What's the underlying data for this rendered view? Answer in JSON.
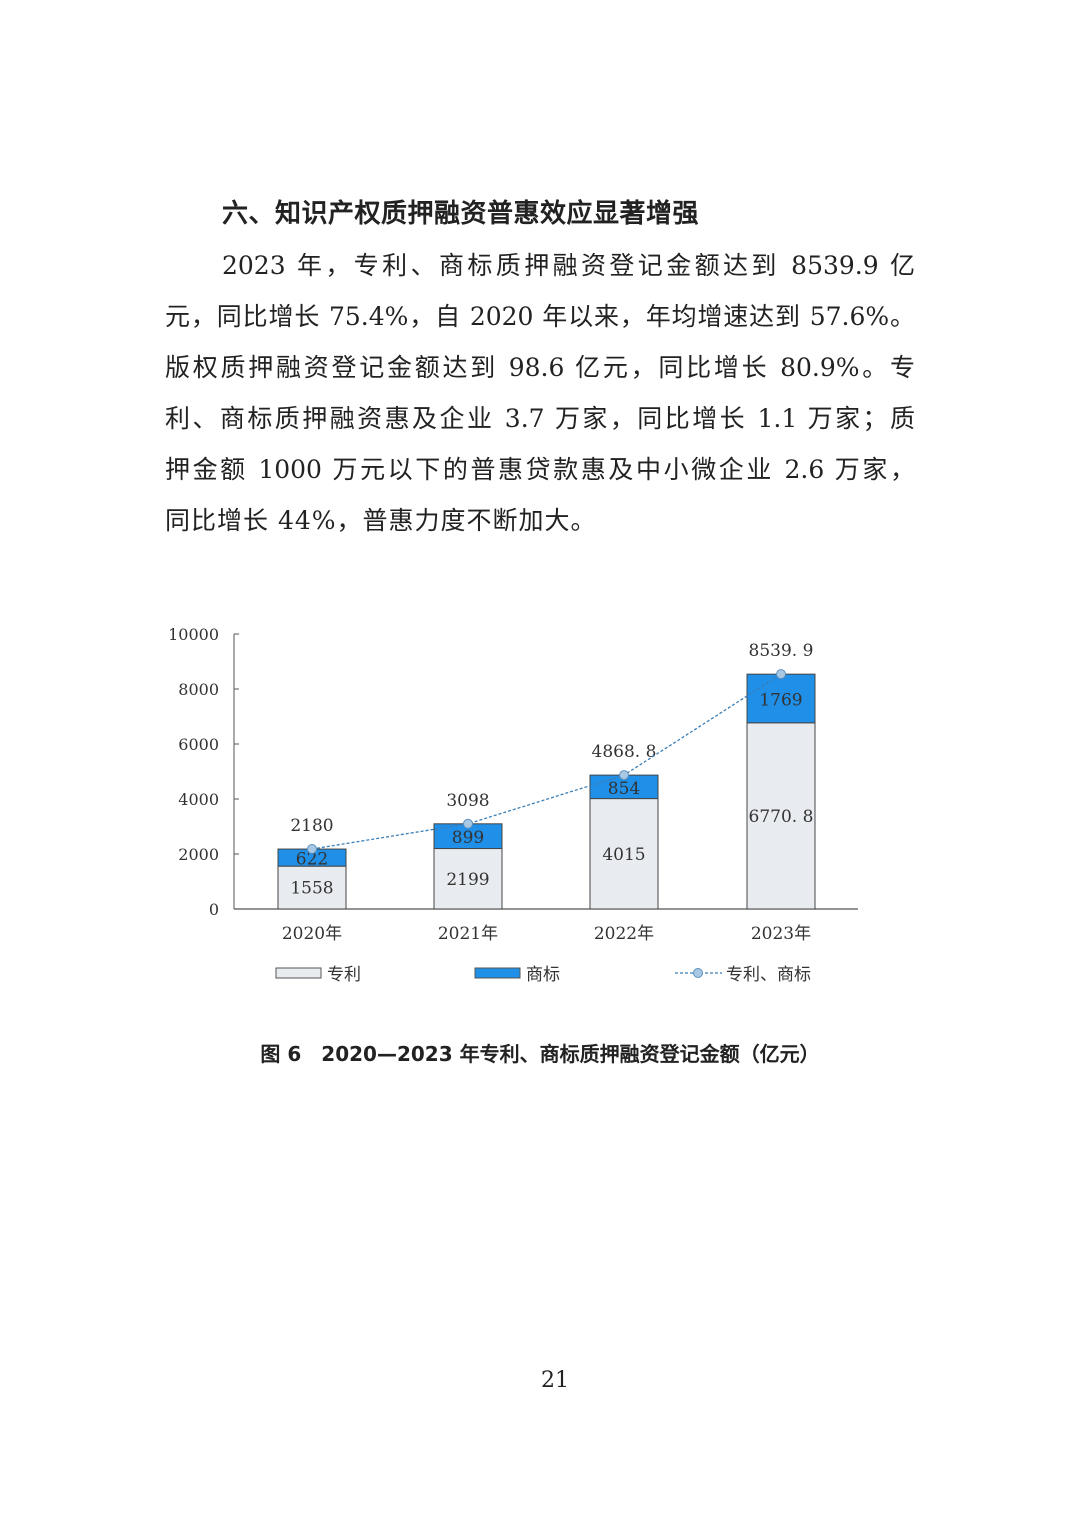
{
  "heading": "六、知识产权质押融资普惠效应显著增强",
  "paragraph_lines": [
    "2023 年，专利、商标质押融资登记金额达到 8539.9 亿",
    "元，同比增长 75.4%，自 2020 年以来，年均增速达到 57.6%。",
    "版权质押融资登记金额达到 98.6 亿元，同比增长 80.9%。专",
    "利、商标质押融资惠及企业 3.7 万家，同比增长 1.1 万家；质",
    "押金额 1000 万元以下的普惠贷款惠及中小微企业 2.6 万家，",
    "同比增长 44%，普惠力度不断加大。"
  ],
  "chart_data": {
    "type": "bar",
    "stacked": true,
    "categories": [
      "2020年",
      "2021年",
      "2022年",
      "2023年"
    ],
    "series": [
      {
        "name": "专利",
        "type": "bar",
        "color": "#e8ebef",
        "values": [
          1558,
          2199,
          4015,
          6770.8
        ],
        "labels": [
          "1558",
          "2199",
          "4015",
          "6770. 8"
        ]
      },
      {
        "name": "商标",
        "type": "bar",
        "color": "#1f8fe8",
        "values": [
          622,
          899,
          854,
          1769
        ],
        "labels": [
          "622",
          "899",
          "854",
          "1769"
        ]
      },
      {
        "name": "专利、商标",
        "type": "line",
        "color": "#3a7fb8",
        "values": [
          2180,
          3098,
          4868.8,
          8539.9
        ],
        "labels": [
          "2180",
          "3098",
          "4868. 8",
          "8539. 9"
        ]
      }
    ],
    "ylim": [
      0,
      10000
    ],
    "yticks": [
      "0",
      "2000",
      "4000",
      "6000",
      "8000",
      "10000"
    ],
    "grid": false,
    "legend": "bottom"
  },
  "caption": "图 6　2020—2023 年专利、商标质押融资登记金额（亿元）",
  "page_number": "21"
}
